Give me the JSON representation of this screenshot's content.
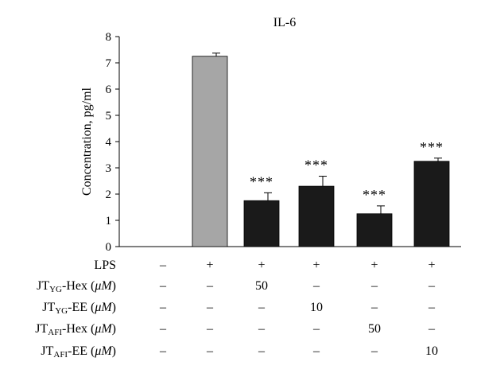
{
  "chart_data": {
    "type": "bar",
    "title": "IL-6",
    "ylabel": "Concentration, pg/ml",
    "xlabel": "",
    "ylim": [
      0,
      8
    ],
    "yticks": [
      "0",
      "1",
      "2",
      "3",
      "4",
      "5",
      "6",
      "7",
      "8"
    ],
    "values": [
      0,
      7.25,
      1.75,
      2.3,
      1.25,
      3.25
    ],
    "errors": [
      0,
      0.12,
      0.3,
      0.38,
      0.3,
      0.12
    ],
    "bar_colors": [
      "#000000",
      "#a6a6a6",
      "#1a1a1a",
      "#1a1a1a",
      "#1a1a1a",
      "#1a1a1a"
    ],
    "annotations": [
      "",
      "",
      "***",
      "***",
      "***",
      "***"
    ]
  },
  "table": {
    "rows": [
      {
        "label_main": "LPS",
        "label_sub": "",
        "label_suffix": "",
        "cells": [
          "–",
          "+",
          "+",
          "+",
          "+",
          "+"
        ]
      },
      {
        "label_main": "JT",
        "label_sub": "YG",
        "label_suffix": "-Hex (",
        "unit": "μM",
        "close": ")",
        "cells": [
          "–",
          "–",
          "50",
          "–",
          "–",
          "–"
        ]
      },
      {
        "label_main": "JT",
        "label_sub": "YG",
        "label_suffix": "-EE (",
        "unit": "μM",
        "close": ")",
        "cells": [
          "–",
          "–",
          "–",
          "10",
          "–",
          "–"
        ]
      },
      {
        "label_main": "JT",
        "label_sub": "AFI",
        "label_suffix": "-Hex (",
        "unit": "μM",
        "close": ")",
        "cells": [
          "–",
          "–",
          "–",
          "–",
          "50",
          "–"
        ]
      },
      {
        "label_main": "JT",
        "label_sub": "AFI",
        "label_suffix": "-EE (",
        "unit": "μM",
        "close": ")",
        "cells": [
          "–",
          "–",
          "–",
          "–",
          "–",
          "10"
        ]
      }
    ]
  }
}
